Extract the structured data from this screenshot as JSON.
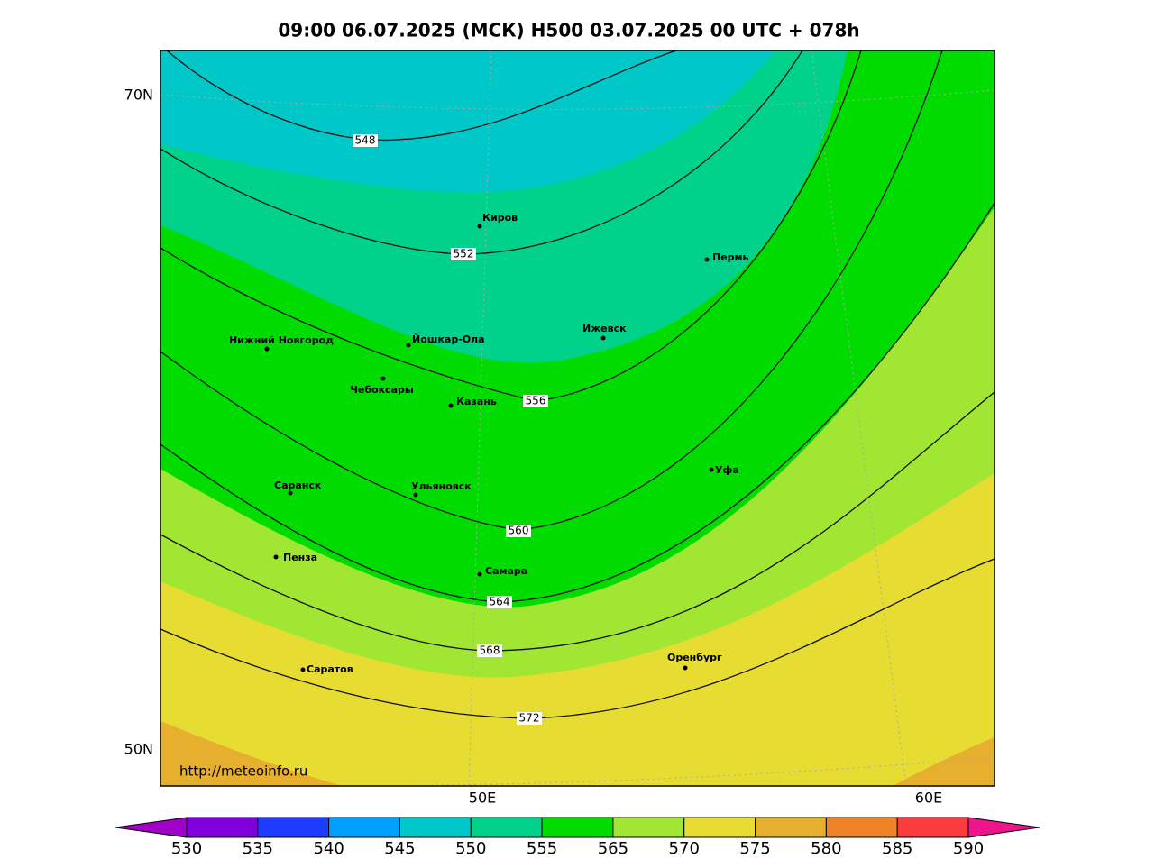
{
  "title": "09:00 06.07.2025 (МСК) H500  03.07.2025 00 UTC + 078h",
  "map": {
    "lat_labels": [
      "70N",
      "50N"
    ],
    "lon_labels": [
      "50E",
      "60E"
    ],
    "cities": [
      "Киров",
      "Пермь",
      "Нижний Новгород",
      "Йошкар-Ола",
      "Ижевск",
      "Чебоксары",
      "Казань",
      "Уфа",
      "Саранск",
      "Ульяновск",
      "Пенза",
      "Самара",
      "Оренбург",
      "Саратов"
    ],
    "contour_labels": [
      548,
      552,
      556,
      560,
      564,
      568,
      572
    ],
    "credit": "http://meteoinfo.ru"
  },
  "colorbar": {
    "labels": [
      530,
      535,
      540,
      545,
      550,
      555,
      565,
      570,
      575,
      580,
      585,
      590
    ]
  }
}
